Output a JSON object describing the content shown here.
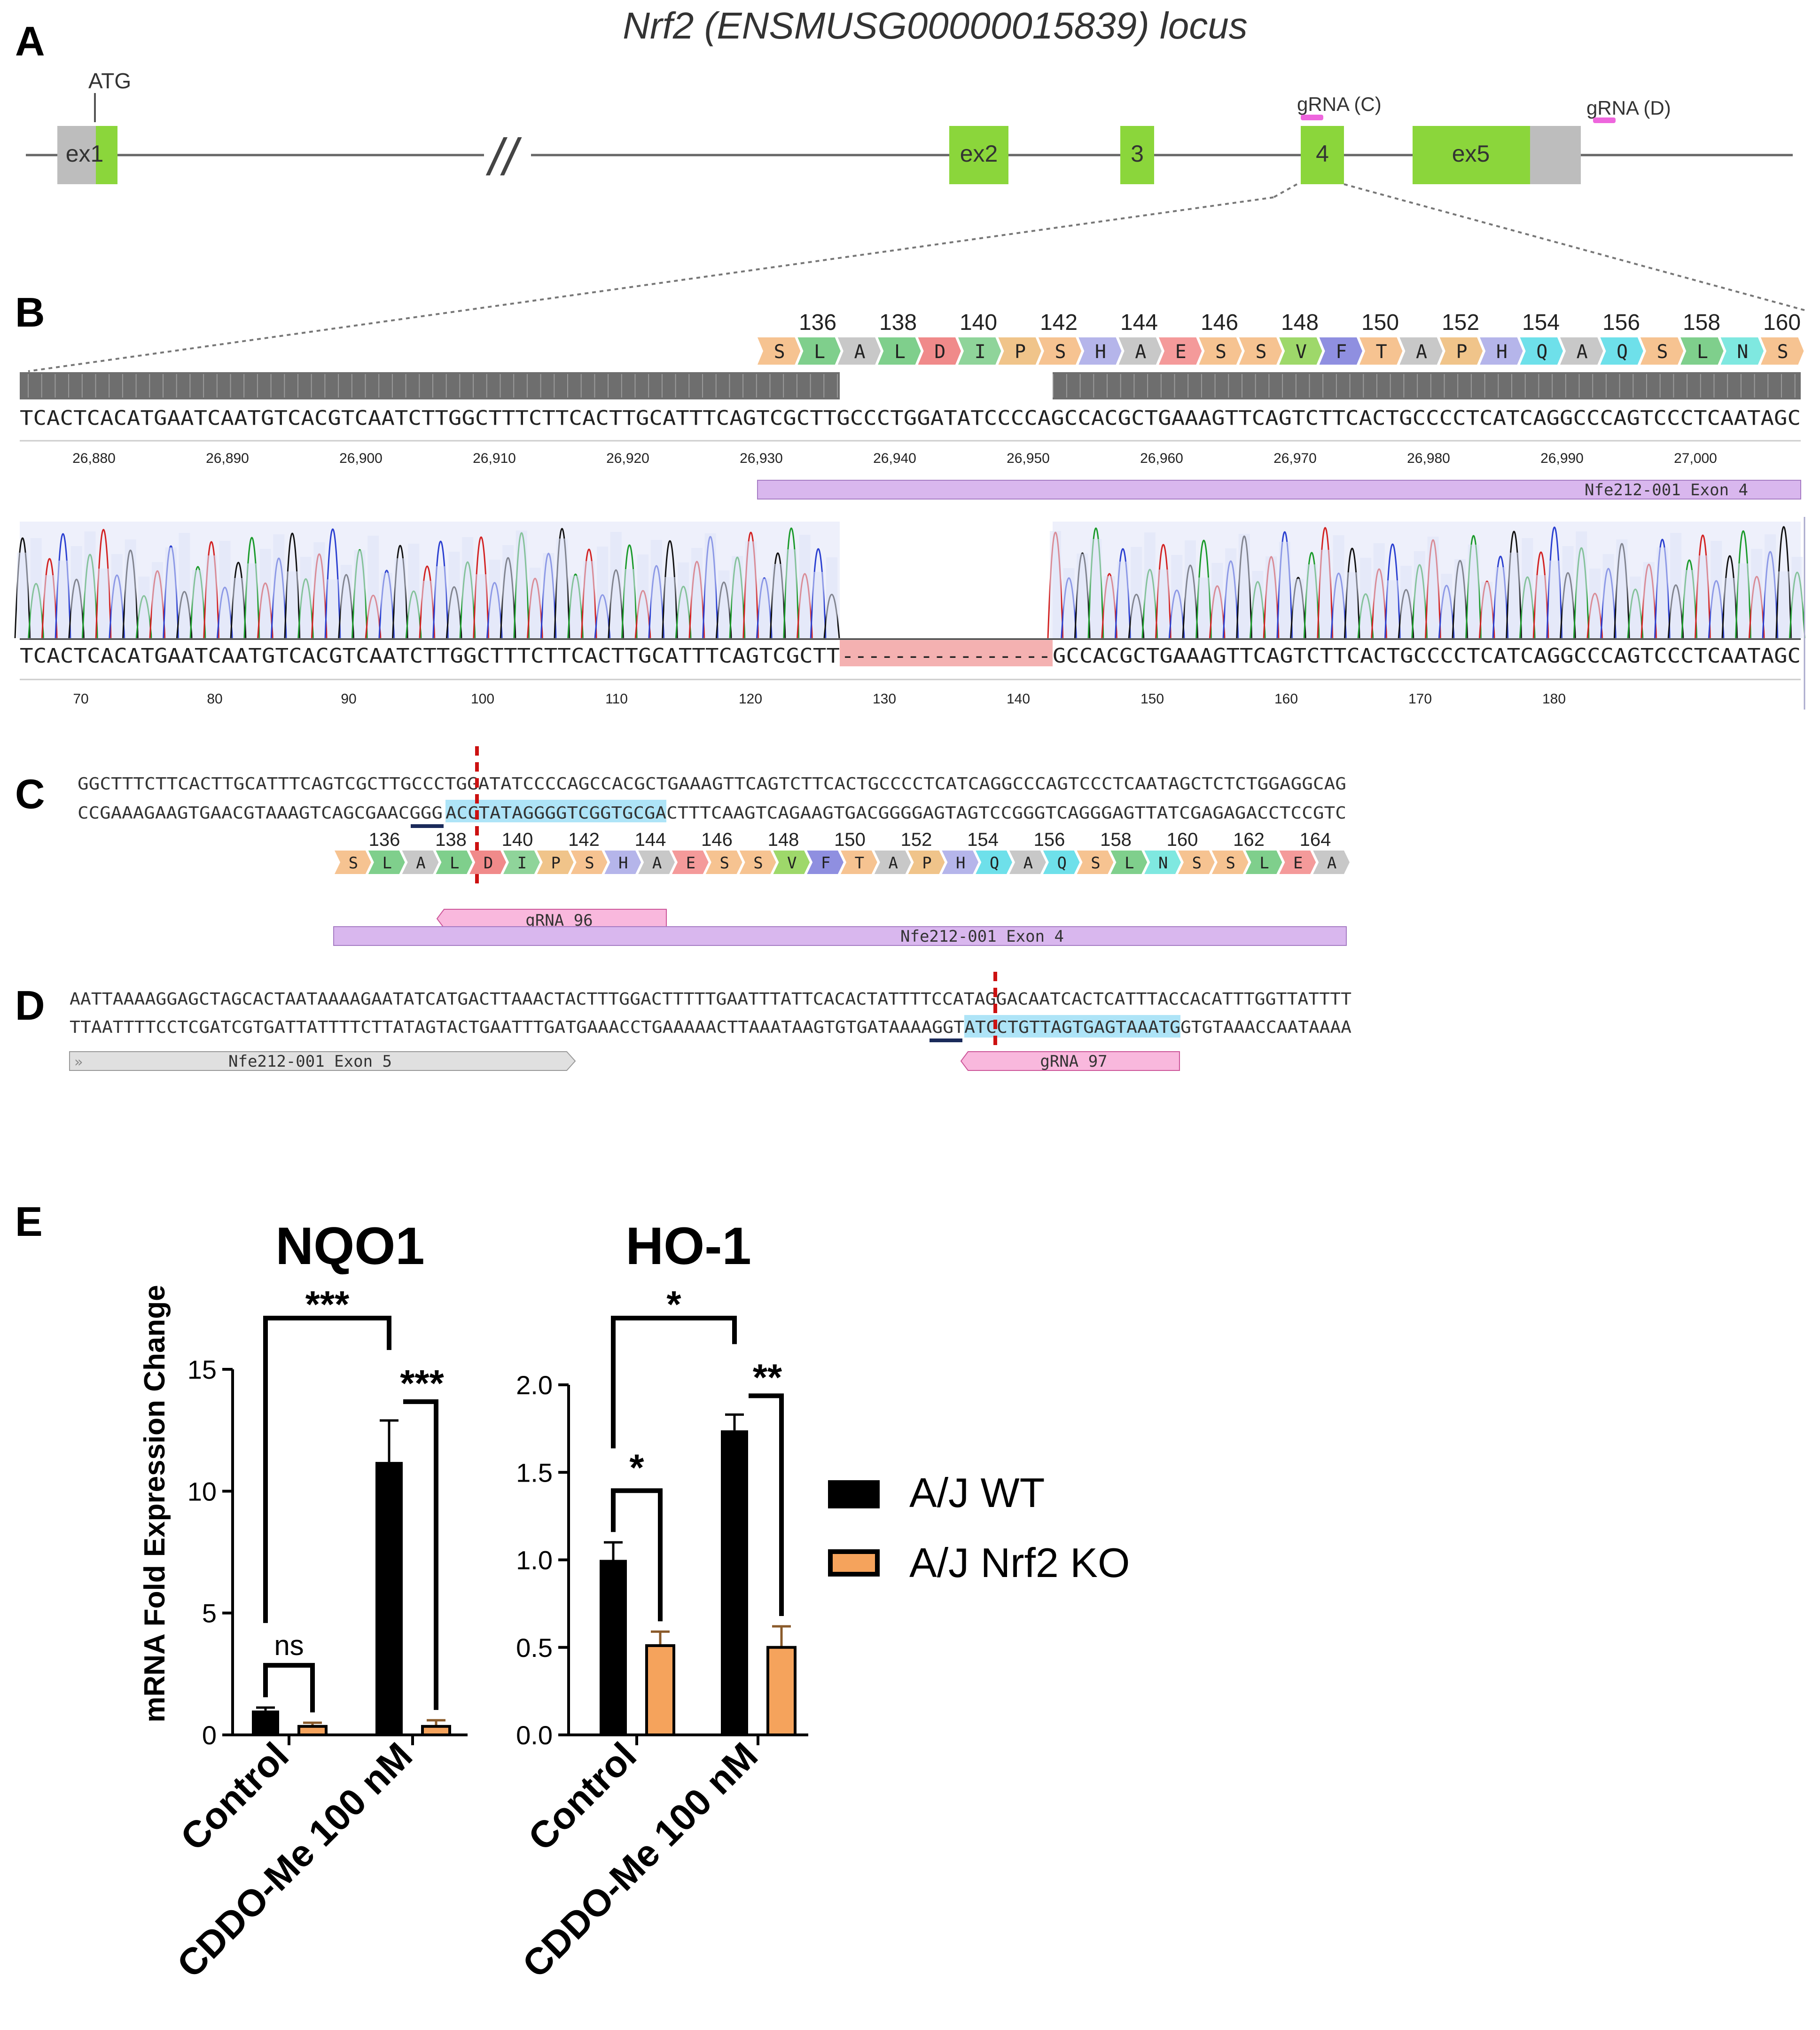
{
  "figure": {
    "panel_letters": {
      "a": "A",
      "b": "B",
      "c": "C",
      "d": "D",
      "e": "E"
    },
    "locus_title": "Nrf2 (ENSMUSG00000015839) locus",
    "atg_label": "ATG",
    "break_mark": "//",
    "exons": [
      "ex1",
      "ex2",
      "3",
      "4",
      "ex5"
    ],
    "grna_c_label": "gRNA (C)",
    "grna_d_label": "gRNA (D)"
  },
  "panel_b": {
    "aa_numbers": [
      "136",
      "138",
      "140",
      "142",
      "144",
      "146",
      "148",
      "150",
      "152",
      "154",
      "156",
      "158",
      "160"
    ],
    "amino_acids": [
      "S",
      "L",
      "A",
      "L",
      "D",
      "I",
      "P",
      "S",
      "H",
      "A",
      "E",
      "S",
      "S",
      "V",
      "F",
      "T",
      "A",
      "P",
      "H",
      "Q",
      "A",
      "Q",
      "S",
      "L",
      "N",
      "S"
    ],
    "ref_sequence": "TCACTCACATGAATCAATGTCACGTCAATCTTGGCTTTCTTCACTTGCATTTCAGTCGCTTGCCCTGGATATCCCCAGCCACGCTGAAAGTTCAGTCTTCACTGCCCCTCATCAGGCCCAGTCCCTCAATAGC",
    "ruler_labels": [
      "26,880",
      "26,890",
      "26,900",
      "26,910",
      "26,920",
      "26,930",
      "26,940",
      "26,950",
      "26,960",
      "26,970",
      "26,980",
      "26,990",
      "27,000"
    ],
    "exon_annotation": "Nfe212-001 Exon 4",
    "read_left": "TCACTCACATGAATCAATGTCACGTCAATCTTGGCTTTCTTCACTTGCATTTCAGTCGCTT",
    "read_gap": "----------------",
    "read_right": "GCCACGCTGAAAGTTCAGTCTTCACTGCCCCTCATCAGGCCCAGTCCCTCAATAGC",
    "read_ruler_labels": [
      "70",
      "80",
      "90",
      "100",
      "110",
      "120",
      "130",
      "140",
      "150",
      "160",
      "170",
      "180"
    ]
  },
  "panel_c": {
    "top_strand": "GGCTTTCTTCACTTGCATTTCAGTCGCTTGCCCTGGATATCCCCAGCCACGCTGAAAGTTCAGTCTTCACTGCCCCTCATCAGGCCCAGTCCCTCAATAGCTCTCTGGAGGCAG",
    "bottom_left": "CCGAAAGAAGTGAACGTAAAGTCAGCGAACGGG",
    "bottom_highlight": "ACCTATAGGGGTCGGTGCGA",
    "bottom_right": "CTTTCAAGTCAGAAGTGACGGGGAGTAGTCCGGGTCAGGGAGTTATCGAGAGACCTCCGTC",
    "aa_numbers": [
      "136",
      "138",
      "140",
      "142",
      "144",
      "146",
      "148",
      "150",
      "152",
      "154",
      "156",
      "158",
      "160",
      "162",
      "164"
    ],
    "amino_acids": [
      "S",
      "L",
      "A",
      "L",
      "D",
      "I",
      "P",
      "S",
      "H",
      "A",
      "E",
      "S",
      "S",
      "V",
      "F",
      "T",
      "A",
      "P",
      "H",
      "Q",
      "A",
      "Q",
      "S",
      "L",
      "N",
      "S",
      "S",
      "L",
      "E",
      "A"
    ],
    "grna_label": "gRNA 96",
    "exon_label": "Nfe212-001 Exon 4"
  },
  "panel_d": {
    "top_strand": "AATTAAAAGGAGCTAGCACTAATAAAAGAATATCATGACTTAAACTACTTTGGACTTTTTGAATTTATTCACACTATTTTCCATAGGACAATCACTCATTTACCACATTTGGTTATTTT",
    "bottom_left": "TTAATTTTCCTCGATCGTGATTATTTTCTTATAGTACTGAATTTGATGAAACCTGAAAAACTTAAATAAGTGTGATAAAAGGT",
    "bottom_highlight": "ATCCTGTTAGTGAGTAAATG",
    "bottom_right": "GTGTAAACCAATAAAA",
    "exon_label": "Nfe212-001 Exon 5",
    "grna_label": "gRNA 97"
  },
  "legend": {
    "wt": "A/J WT",
    "ko": "A/J Nrf2 KO"
  },
  "chart_data": [
    {
      "type": "bar",
      "title": "NQO1",
      "ylabel": "mRNA Fold Expression Change",
      "categories": [
        "Control",
        "CDDO-Me 100 nM"
      ],
      "series": [
        {
          "name": "A/J WT",
          "values": [
            1.0,
            11.2
          ],
          "errors": [
            0.12,
            1.7
          ],
          "color": "#000000"
        },
        {
          "name": "A/J Nrf2 KO",
          "values": [
            0.35,
            0.35
          ],
          "errors": [
            0.15,
            0.25
          ],
          "color": "#f5a35c"
        }
      ],
      "ylim": [
        0,
        15
      ],
      "yticks": [
        "0",
        "5",
        "10",
        "15"
      ],
      "significance": {
        "outer": "***",
        "treated": "***",
        "control": "ns"
      }
    },
    {
      "type": "bar",
      "title": "HO-1",
      "ylabel": "",
      "categories": [
        "Control",
        "CDDO-Me 100 nM"
      ],
      "series": [
        {
          "name": "A/J WT",
          "values": [
            1.0,
            1.74
          ],
          "errors": [
            0.1,
            0.09
          ],
          "color": "#000000"
        },
        {
          "name": "A/J Nrf2 KO",
          "values": [
            0.51,
            0.5
          ],
          "errors": [
            0.08,
            0.12
          ],
          "color": "#f5a35c"
        }
      ],
      "ylim": [
        0,
        2.0
      ],
      "yticks": [
        "0.0",
        "0.5",
        "1.0",
        "1.5",
        "2.0"
      ],
      "significance": {
        "outer": "*",
        "treated": "**",
        "control": "*"
      }
    }
  ]
}
